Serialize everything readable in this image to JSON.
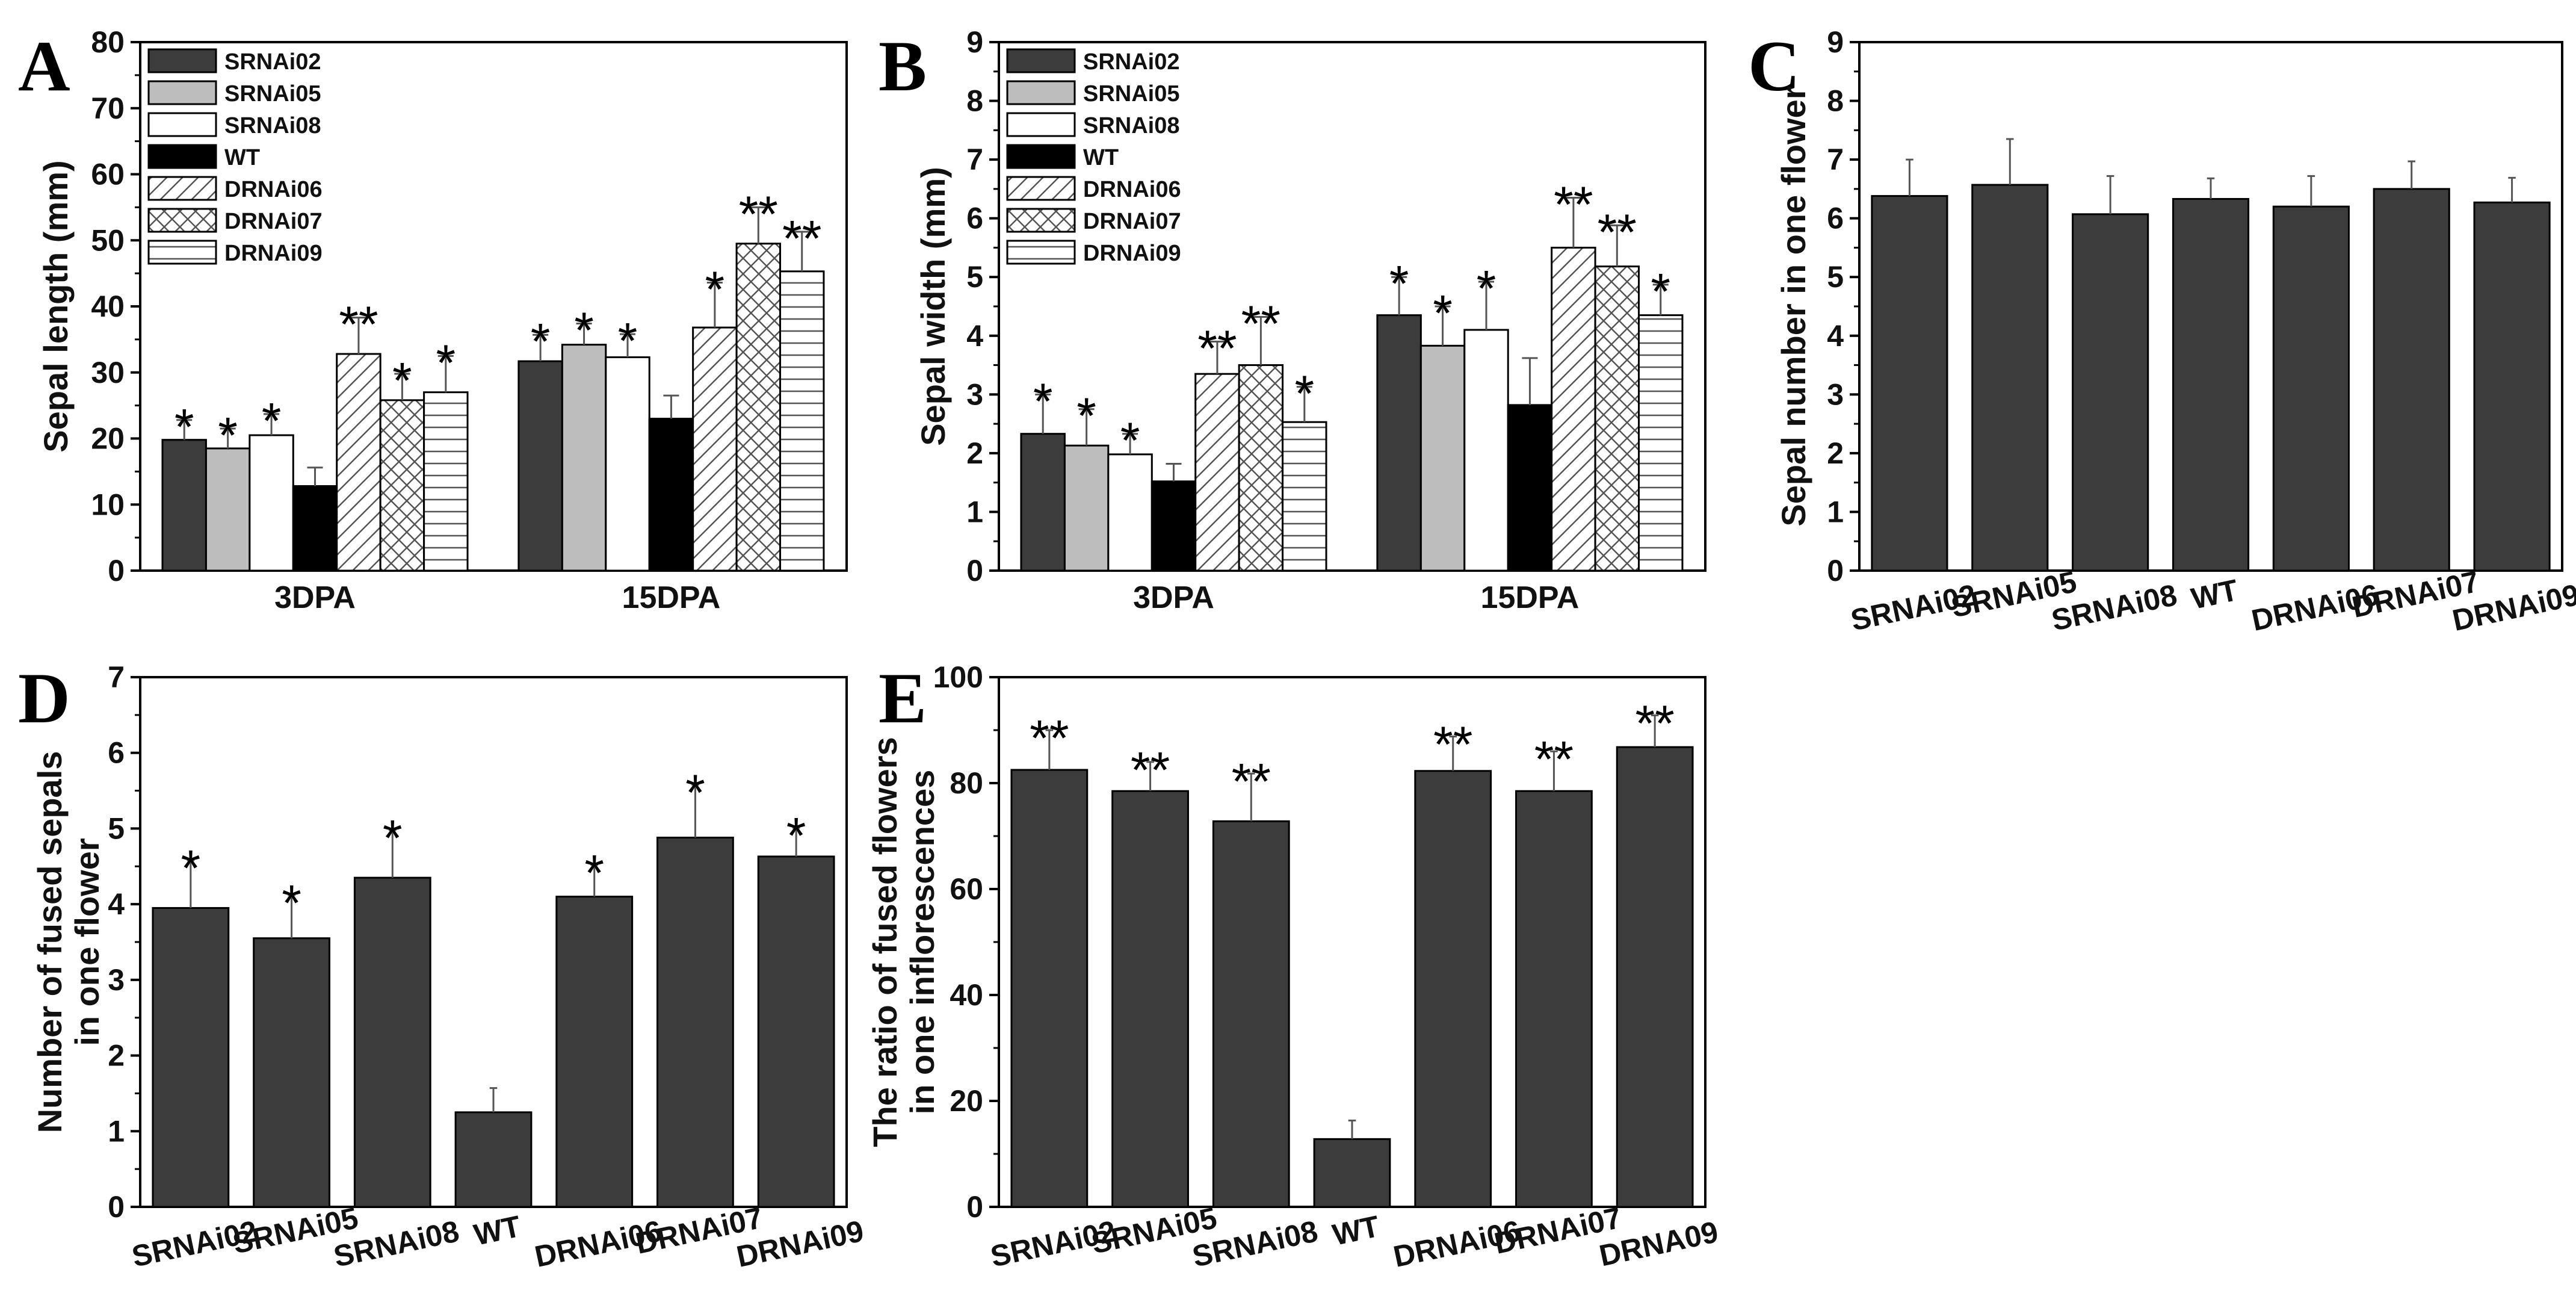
{
  "colors": {
    "dark_gray": "#3c3c3c",
    "light_gray": "#bdbdbd",
    "white": "#ffffff",
    "black": "#000000"
  },
  "chart_data": [
    {
      "panel": "A",
      "type": "bar",
      "title": "",
      "xlabel": "",
      "ylabel": "Sepal length (mm)",
      "ylim": [
        0,
        80
      ],
      "yticks": [
        "0",
        "10",
        "20",
        "30",
        "40",
        "50",
        "60",
        "70",
        "80"
      ],
      "categories": [
        "3DPA",
        "15DPA"
      ],
      "legend_position": "top-left",
      "series": [
        {
          "name": "SRNAi02",
          "fill": "dark",
          "values": [
            19.8,
            31.7
          ],
          "errors": [
            3.0,
            4.0
          ],
          "sig": [
            "*",
            "*"
          ]
        },
        {
          "name": "SRNAi05",
          "fill": "light",
          "values": [
            18.5,
            34.2
          ],
          "errors": [
            3.0,
            3.2
          ],
          "sig": [
            "*",
            "*"
          ]
        },
        {
          "name": "SRNAi08",
          "fill": "white",
          "values": [
            20.5,
            32.3
          ],
          "errors": [
            3.2,
            3.5
          ],
          "sig": [
            "*",
            "*"
          ]
        },
        {
          "name": "WT",
          "fill": "black",
          "values": [
            12.8,
            23.0
          ],
          "errors": [
            2.8,
            3.5
          ],
          "sig": [
            "",
            ""
          ]
        },
        {
          "name": "DRNAi06",
          "fill": "diag",
          "values": [
            32.8,
            36.8
          ],
          "errors": [
            5.5,
            6.8
          ],
          "sig": [
            "**",
            "*"
          ]
        },
        {
          "name": "DRNAi07",
          "fill": "cross",
          "values": [
            25.8,
            49.5
          ],
          "errors": [
            4.0,
            5.5
          ],
          "sig": [
            "*",
            "**"
          ]
        },
        {
          "name": "DRNAi09",
          "fill": "horiz",
          "values": [
            27.0,
            45.3
          ],
          "errors": [
            5.5,
            6.0
          ],
          "sig": [
            "*",
            "**"
          ]
        }
      ]
    },
    {
      "panel": "B",
      "type": "bar",
      "title": "",
      "xlabel": "",
      "ylabel": "Sepal width (mm)",
      "ylim": [
        0,
        9
      ],
      "yticks": [
        "0",
        "1",
        "2",
        "3",
        "4",
        "5",
        "6",
        "7",
        "8",
        "9"
      ],
      "categories": [
        "3DPA",
        "15DPA"
      ],
      "legend_position": "top-left",
      "series": [
        {
          "name": "SRNAi02",
          "fill": "dark",
          "values": [
            2.33,
            4.35
          ],
          "errors": [
            0.67,
            0.65
          ],
          "sig": [
            "*",
            "*"
          ]
        },
        {
          "name": "SRNAi05",
          "fill": "light",
          "values": [
            2.13,
            3.83
          ],
          "errors": [
            0.62,
            0.67
          ],
          "sig": [
            "*",
            "*"
          ]
        },
        {
          "name": "SRNAi08",
          "fill": "white",
          "values": [
            1.98,
            4.1
          ],
          "errors": [
            0.35,
            0.82
          ],
          "sig": [
            "*",
            "*"
          ]
        },
        {
          "name": "WT",
          "fill": "black",
          "values": [
            1.52,
            2.82
          ],
          "errors": [
            0.3,
            0.8
          ],
          "sig": [
            "",
            ""
          ]
        },
        {
          "name": "DRNAi06",
          "fill": "diag",
          "values": [
            3.35,
            5.5
          ],
          "errors": [
            0.55,
            0.85
          ],
          "sig": [
            "**",
            "**"
          ]
        },
        {
          "name": "DRNAi07",
          "fill": "cross",
          "values": [
            3.5,
            5.18
          ],
          "errors": [
            0.82,
            0.7
          ],
          "sig": [
            "**",
            "**"
          ]
        },
        {
          "name": "DRNAi09",
          "fill": "horiz",
          "values": [
            2.53,
            4.35
          ],
          "errors": [
            0.6,
            0.52
          ],
          "sig": [
            "*",
            "*"
          ]
        }
      ]
    },
    {
      "panel": "C",
      "type": "bar",
      "title": "",
      "xlabel": "",
      "ylabel": "Sepal number in one flower",
      "ylim": [
        0,
        9
      ],
      "yticks": [
        "0",
        "1",
        "2",
        "3",
        "4",
        "5",
        "6",
        "7",
        "8",
        "9"
      ],
      "categories": [
        "SRNAi02",
        "SRNAi05",
        "SRNAi08",
        "WT",
        "DRNAi06",
        "DRNAi07",
        "DRNAi09"
      ],
      "values": [
        6.38,
        6.57,
        6.07,
        6.33,
        6.2,
        6.5,
        6.27
      ],
      "errors": [
        0.62,
        0.78,
        0.65,
        0.35,
        0.52,
        0.47,
        0.42
      ],
      "sig": [
        "",
        "",
        "",
        "",
        "",
        "",
        ""
      ]
    },
    {
      "panel": "D",
      "type": "bar",
      "title": "",
      "xlabel": "",
      "ylabel_lines": [
        "Number of fused sepals",
        "in one flower"
      ],
      "ylim": [
        0,
        7
      ],
      "yticks": [
        "0",
        "1",
        "2",
        "3",
        "4",
        "5",
        "6",
        "7"
      ],
      "categories": [
        "SRNAi02",
        "SRNAi05",
        "SRNAi08",
        "WT",
        "DRNAi06",
        "DRNAi07",
        "DRNAi09"
      ],
      "values": [
        3.95,
        3.55,
        4.35,
        1.25,
        4.1,
        4.88,
        4.63
      ],
      "errors": [
        0.63,
        0.57,
        0.63,
        0.32,
        0.42,
        0.7,
        0.38
      ],
      "sig": [
        "*",
        "*",
        "*",
        "",
        "*",
        "*",
        "*"
      ]
    },
    {
      "panel": "E",
      "type": "bar",
      "title": "",
      "xlabel": "",
      "ylabel_lines": [
        "The ratio of fused flowers",
        "in one inflorescences"
      ],
      "ylim": [
        0,
        100
      ],
      "yticks": [
        "0",
        "20",
        "40",
        "60",
        "80",
        "100"
      ],
      "categories": [
        "SRNAi02",
        "SRNAi05",
        "SRNAi08",
        "WT",
        "DRNAi06",
        "DRNAi07",
        "DRNA09"
      ],
      "values": [
        82.5,
        78.5,
        72.8,
        12.8,
        82.3,
        78.5,
        86.8
      ],
      "errors": [
        7.5,
        5.5,
        9.0,
        3.5,
        6.5,
        7.5,
        6.0
      ],
      "sig": [
        "**",
        "**",
        "**",
        "",
        "**",
        "**",
        "**"
      ]
    }
  ]
}
